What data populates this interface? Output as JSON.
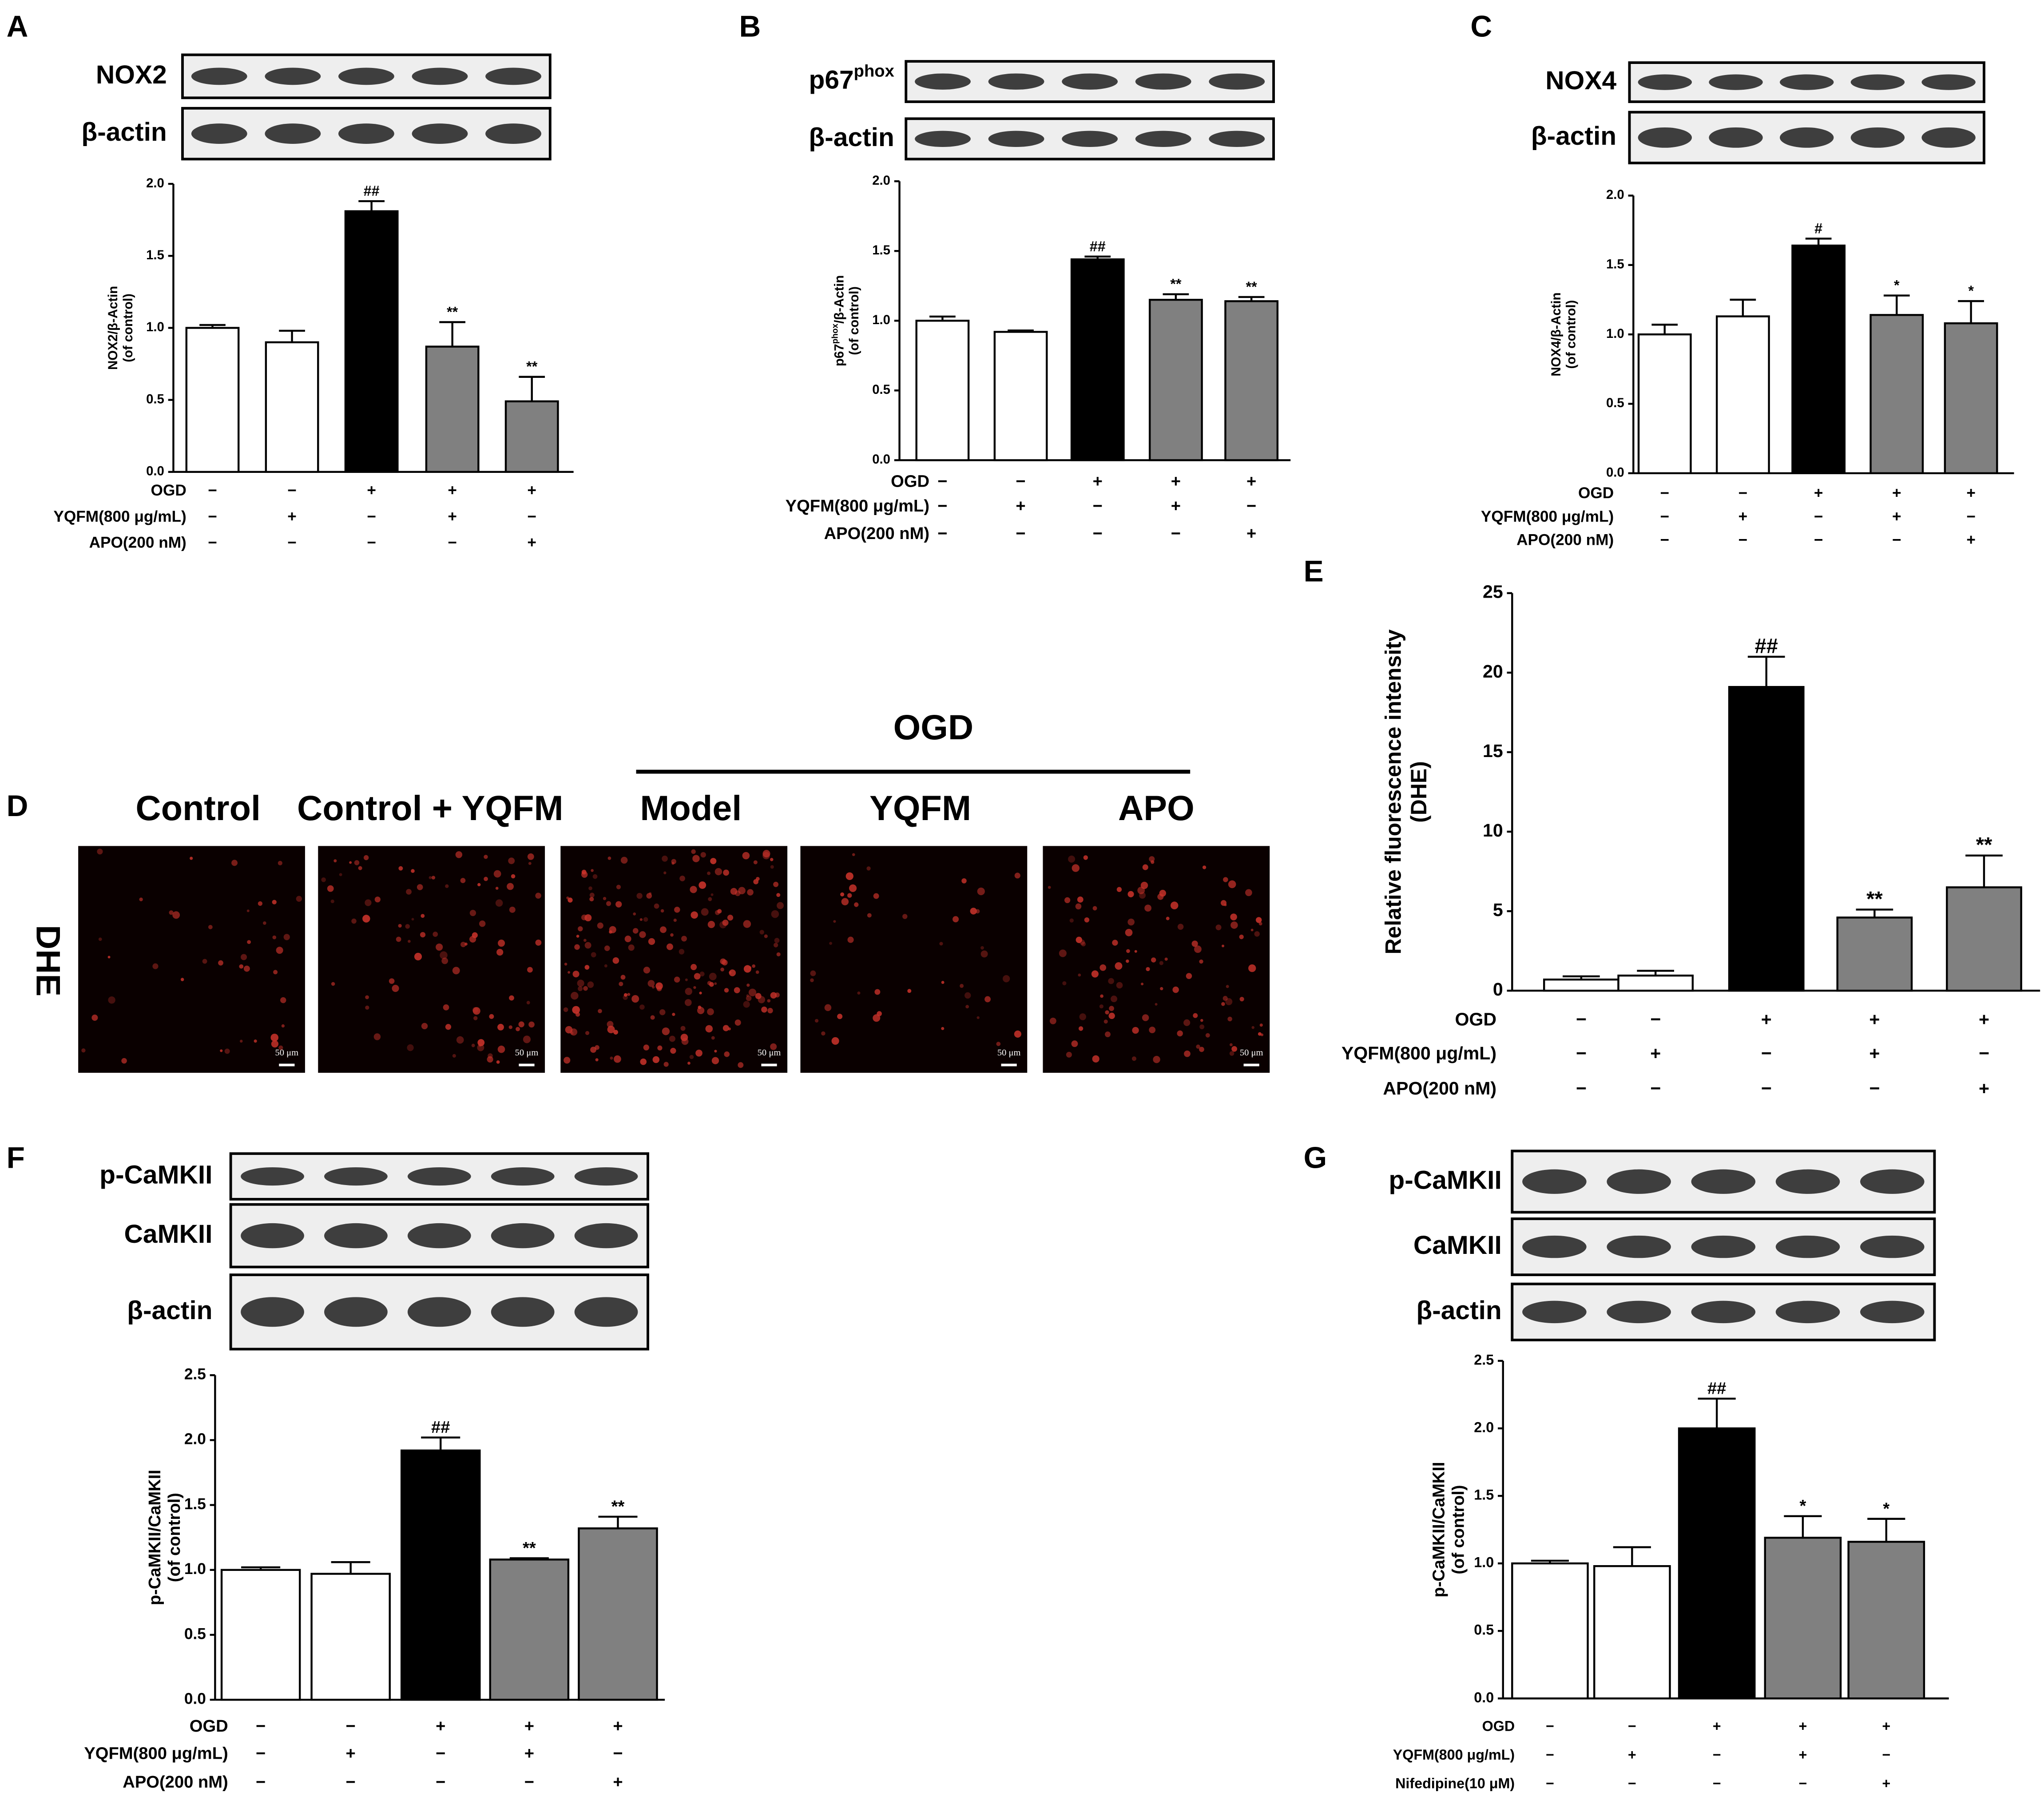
{
  "chart_data": [
    {
      "type": "bar",
      "panel": "A",
      "blots": [
        [
          {
            "text": "NOX2"
          }
        ],
        [
          {
            "text": "β-actin"
          }
        ]
      ],
      "y_label": [
        [
          {
            "text": "NOX2/β-Actin"
          }
        ],
        [
          {
            "text": "(of control)"
          }
        ]
      ],
      "values": [
        1.0,
        0.9,
        1.81,
        0.87,
        0.49
      ],
      "errors": [
        0.02,
        0.08,
        0.07,
        0.17,
        0.17
      ],
      "colors": [
        "#ffffff",
        "#ffffff",
        "#000000",
        "#808080",
        "#808080"
      ],
      "annotations": [
        null,
        null,
        "##",
        "**",
        "**"
      ],
      "ylim": [
        0,
        2
      ],
      "yticks": [
        {
          "value": 0,
          "label": "0.0"
        },
        0.5,
        {
          "value": 1,
          "label": "1.0"
        },
        1.5,
        {
          "value": 2,
          "label": "2.0"
        }
      ],
      "conditions": [
        {
          "label": "OGD",
          "signs": [
            "−",
            "−",
            "+",
            "+",
            "+"
          ]
        },
        {
          "label": "YQFM(800 μg/mL)",
          "signs": [
            "−",
            "+",
            "−",
            "+",
            "−"
          ]
        },
        {
          "label": "APO(200 nM)",
          "signs": [
            "−",
            "−",
            "−",
            "−",
            "+"
          ]
        }
      ]
    },
    {
      "type": "bar",
      "panel": "B",
      "blots": [
        [
          {
            "text": "p67"
          },
          {
            "text": "phox",
            "sup": true
          }
        ],
        [
          {
            "text": "β-actin"
          }
        ]
      ],
      "y_label": [
        [
          {
            "text": "p67"
          },
          {
            "text": "phox",
            "sup": true
          },
          {
            "text": "/β-Actin"
          }
        ],
        [
          {
            "text": "(of control)"
          }
        ]
      ],
      "values": [
        1.0,
        0.92,
        1.44,
        1.15,
        1.14
      ],
      "errors": [
        0.03,
        0.01,
        0.02,
        0.04,
        0.03
      ],
      "colors": [
        "#ffffff",
        "#ffffff",
        "#000000",
        "#808080",
        "#808080"
      ],
      "annotations": [
        null,
        null,
        "##",
        "**",
        "**"
      ],
      "ylim": [
        0,
        2
      ],
      "yticks": [
        {
          "value": 0,
          "label": "0.0"
        },
        0.5,
        {
          "value": 1,
          "label": "1.0"
        },
        1.5,
        {
          "value": 2,
          "label": "2.0"
        }
      ],
      "conditions": [
        {
          "label": "OGD",
          "signs": [
            "−",
            "−",
            "+",
            "+",
            "+"
          ]
        },
        {
          "label": "YQFM(800 μg/mL)",
          "signs": [
            "−",
            "+",
            "−",
            "+",
            "−"
          ]
        },
        {
          "label": "APO(200 nM)",
          "signs": [
            "−",
            "−",
            "−",
            "−",
            "+"
          ]
        }
      ]
    },
    {
      "type": "bar",
      "panel": "C",
      "blots": [
        [
          {
            "text": "NOX4"
          }
        ],
        [
          {
            "text": "β-actin"
          }
        ]
      ],
      "y_label": [
        [
          {
            "text": "NOX4/β-Actin"
          }
        ],
        [
          {
            "text": "(of control)"
          }
        ]
      ],
      "values": [
        1.0,
        1.13,
        1.64,
        1.14,
        1.08
      ],
      "errors": [
        0.07,
        0.12,
        0.05,
        0.14,
        0.16
      ],
      "colors": [
        "#ffffff",
        "#ffffff",
        "#000000",
        "#808080",
        "#808080"
      ],
      "annotations": [
        null,
        null,
        "#",
        "*",
        "*"
      ],
      "ylim": [
        0,
        2
      ],
      "yticks": [
        {
          "value": 0,
          "label": "0.0"
        },
        0.5,
        {
          "value": 1,
          "label": "1.0"
        },
        1.5,
        {
          "value": 2,
          "label": "2.0"
        }
      ],
      "conditions": [
        {
          "label": "OGD",
          "signs": [
            "−",
            "−",
            "+",
            "+",
            "+"
          ]
        },
        {
          "label": "YQFM(800 μg/mL)",
          "signs": [
            "−",
            "+",
            "−",
            "+",
            "−"
          ]
        },
        {
          "label": "APO(200 nM)",
          "signs": [
            "−",
            "−",
            "−",
            "−",
            "+"
          ]
        }
      ]
    },
    {
      "type": "bar",
      "panel": "E",
      "blots": [],
      "y_label": [
        [
          {
            "text": "Relative fluorescence intensity"
          }
        ],
        [
          {
            "text": "(DHE)"
          }
        ]
      ],
      "values": [
        0.7,
        0.95,
        19.1,
        4.6,
        6.5
      ],
      "errors": [
        0.2,
        0.3,
        1.9,
        0.5,
        2.0
      ],
      "colors": [
        "#ffffff",
        "#ffffff",
        "#000000",
        "#808080",
        "#808080"
      ],
      "annotations": [
        null,
        null,
        "##",
        "**",
        "**"
      ],
      "ylim": [
        0,
        25
      ],
      "yticks": [
        0,
        5,
        10,
        15,
        20,
        25
      ],
      "conditions": [
        {
          "label": "OGD",
          "signs": [
            "−",
            "−",
            "+",
            "+",
            "+"
          ]
        },
        {
          "label": "YQFM(800 μg/mL)",
          "signs": [
            "−",
            "+",
            "−",
            "+",
            "−"
          ]
        },
        {
          "label": "APO(200 nM)",
          "signs": [
            "−",
            "−",
            "−",
            "−",
            "+"
          ]
        }
      ]
    },
    {
      "type": "bar",
      "panel": "F",
      "blots": [
        [
          {
            "text": "p-CaMKII"
          }
        ],
        [
          {
            "text": "CaMKII"
          }
        ],
        [
          {
            "text": "β-actin"
          }
        ]
      ],
      "y_label": [
        [
          {
            "text": "p-CaMKII/CaMKII"
          }
        ],
        [
          {
            "text": "(of control)"
          }
        ]
      ],
      "values": [
        1.0,
        0.97,
        1.92,
        1.08,
        1.32
      ],
      "errors": [
        0.02,
        0.09,
        0.1,
        0.01,
        0.09
      ],
      "colors": [
        "#ffffff",
        "#ffffff",
        "#000000",
        "#808080",
        "#808080"
      ],
      "annotations": [
        null,
        null,
        "##",
        "**",
        "**"
      ],
      "ylim": [
        0,
        2.5
      ],
      "yticks": [
        {
          "value": 0,
          "label": "0.0"
        },
        0.5,
        {
          "value": 1,
          "label": "1.0"
        },
        1.5,
        {
          "value": 2,
          "label": "2.0"
        },
        2.5
      ],
      "conditions": [
        {
          "label": "OGD",
          "signs": [
            "−",
            "−",
            "+",
            "+",
            "+"
          ]
        },
        {
          "label": "YQFM(800 μg/mL)",
          "signs": [
            "−",
            "+",
            "−",
            "+",
            "−"
          ]
        },
        {
          "label": "APO(200 nM)",
          "signs": [
            "−",
            "−",
            "−",
            "−",
            "+"
          ]
        }
      ]
    },
    {
      "type": "bar",
      "panel": "G",
      "blots": [
        [
          {
            "text": "p-CaMKII"
          }
        ],
        [
          {
            "text": "CaMKII"
          }
        ],
        [
          {
            "text": "β-actin"
          }
        ]
      ],
      "y_label": [
        [
          {
            "text": "p-CaMKII/CaMKII"
          }
        ],
        [
          {
            "text": "(of control)"
          }
        ]
      ],
      "values": [
        1.0,
        0.98,
        2.0,
        1.19,
        1.16
      ],
      "errors": [
        0.02,
        0.14,
        0.22,
        0.16,
        0.17
      ],
      "colors": [
        "#ffffff",
        "#ffffff",
        "#000000",
        "#808080",
        "#808080"
      ],
      "annotations": [
        null,
        null,
        "##",
        "*",
        "*"
      ],
      "ylim": [
        0,
        2.5
      ],
      "yticks": [
        {
          "value": 0,
          "label": "0.0"
        },
        0.5,
        {
          "value": 1,
          "label": "1.0"
        },
        1.5,
        {
          "value": 2,
          "label": "2.0"
        },
        2.5
      ],
      "conditions": [
        {
          "label": "OGD",
          "signs": [
            "−",
            "−",
            "+",
            "+",
            "+"
          ]
        },
        {
          "label": "YQFM(800 μg/mL)",
          "signs": [
            "−",
            "+",
            "−",
            "+",
            "−"
          ]
        },
        {
          "label": "Nifedipine(10 μM)",
          "signs": [
            "−",
            "−",
            "−",
            "−",
            "+"
          ]
        }
      ]
    }
  ],
  "panel_d": {
    "panel": "D",
    "group": "OGD",
    "row_label": "DHE",
    "columns": [
      "Control",
      "Control + YQFM",
      "Model",
      "YQFM",
      "APO"
    ],
    "scale_bar": "50 μm"
  }
}
